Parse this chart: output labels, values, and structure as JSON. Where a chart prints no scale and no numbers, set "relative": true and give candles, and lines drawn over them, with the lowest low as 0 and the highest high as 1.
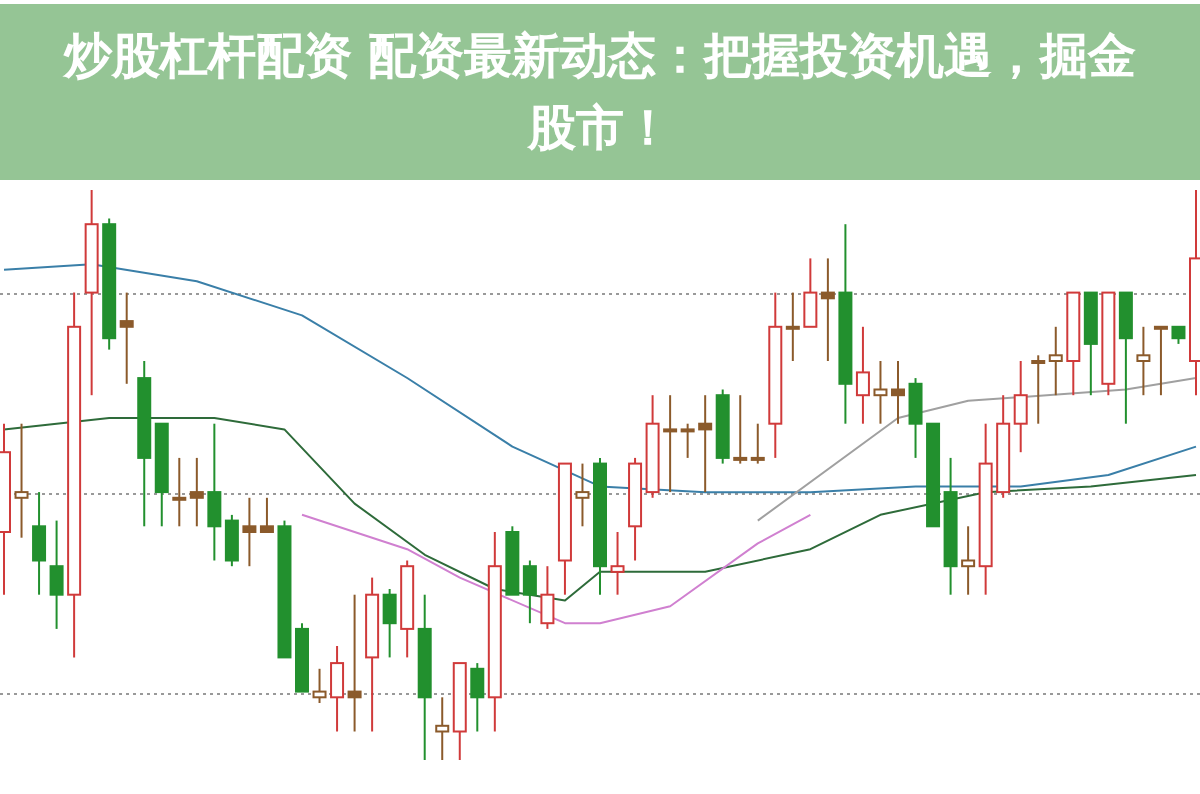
{
  "chart_data": {
    "type": "candlestick",
    "title": "炒股杠杆配资 配资最新动态：把握投资机遇，掘金股市！",
    "relative": true,
    "grid": true,
    "categories": [
      null,
      null,
      null,
      null,
      null,
      null,
      null,
      null,
      null,
      null,
      null,
      null,
      null,
      null,
      null,
      null,
      null,
      null,
      null,
      null,
      null,
      null,
      null,
      null,
      null,
      null,
      null,
      null,
      null,
      null,
      null,
      null,
      null,
      null,
      null,
      null,
      null,
      null,
      null,
      null,
      null,
      null,
      null,
      null,
      null,
      null,
      null,
      null,
      null,
      null,
      null,
      null,
      null,
      null,
      null,
      null,
      null,
      null,
      null,
      null,
      null,
      null,
      null,
      null,
      null,
      null,
      null,
      null,
      null
    ],
    "ohlc": [
      [
        0.4,
        0.59,
        0.29,
        0.54
      ],
      [
        0.46,
        0.59,
        0.39,
        0.47
      ],
      [
        0.41,
        0.47,
        0.29,
        0.35
      ],
      [
        0.34,
        0.42,
        0.23,
        0.29
      ],
      [
        0.29,
        0.82,
        0.18,
        0.76
      ],
      [
        0.82,
        1.0,
        0.64,
        0.94
      ],
      [
        0.94,
        0.95,
        0.72,
        0.74
      ],
      [
        0.77,
        0.82,
        0.66,
        0.76
      ],
      [
        0.67,
        0.7,
        0.41,
        0.53
      ],
      [
        0.59,
        0.59,
        0.41,
        0.47
      ],
      [
        0.46,
        0.53,
        0.41,
        0.46
      ],
      [
        0.47,
        0.53,
        0.41,
        0.46
      ],
      [
        0.47,
        0.59,
        0.35,
        0.41
      ],
      [
        0.42,
        0.43,
        0.34,
        0.35
      ],
      [
        0.41,
        0.46,
        0.34,
        0.4
      ],
      [
        0.41,
        0.46,
        0.4,
        0.4
      ],
      [
        0.41,
        0.42,
        0.18,
        0.18
      ],
      [
        0.23,
        0.24,
        0.12,
        0.12
      ],
      [
        0.11,
        0.16,
        0.1,
        0.12
      ],
      [
        0.11,
        0.2,
        0.05,
        0.17
      ],
      [
        0.12,
        0.29,
        0.05,
        0.11
      ],
      [
        0.18,
        0.32,
        0.05,
        0.29
      ],
      [
        0.29,
        0.3,
        0.18,
        0.24
      ],
      [
        0.23,
        0.35,
        0.18,
        0.34
      ],
      [
        0.23,
        0.29,
        0.0,
        0.11
      ],
      [
        0.05,
        0.11,
        0.0,
        0.06
      ],
      [
        0.05,
        0.17,
        0.0,
        0.17
      ],
      [
        0.16,
        0.17,
        0.05,
        0.11
      ],
      [
        0.11,
        0.4,
        0.05,
        0.34
      ],
      [
        0.4,
        0.41,
        0.29,
        0.29
      ],
      [
        0.34,
        0.35,
        0.24,
        0.29
      ],
      [
        0.24,
        0.34,
        0.23,
        0.29
      ],
      [
        0.35,
        0.52,
        0.29,
        0.52
      ],
      [
        0.46,
        0.52,
        0.41,
        0.47
      ],
      [
        0.52,
        0.53,
        0.29,
        0.34
      ],
      [
        0.33,
        0.4,
        0.29,
        0.34
      ],
      [
        0.41,
        0.53,
        0.35,
        0.52
      ],
      [
        0.47,
        0.64,
        0.46,
        0.59
      ],
      [
        0.58,
        0.64,
        0.47,
        0.58
      ],
      [
        0.58,
        0.59,
        0.53,
        0.58
      ],
      [
        0.59,
        0.64,
        0.47,
        0.58
      ],
      [
        0.64,
        0.65,
        0.52,
        0.53
      ],
      [
        0.53,
        0.64,
        0.52,
        0.53
      ],
      [
        0.53,
        0.59,
        0.52,
        0.53
      ],
      [
        0.59,
        0.82,
        0.53,
        0.76
      ],
      [
        0.76,
        0.82,
        0.7,
        0.76
      ],
      [
        0.76,
        0.88,
        0.76,
        0.82
      ],
      [
        0.82,
        0.88,
        0.7,
        0.81
      ],
      [
        0.82,
        0.94,
        0.59,
        0.66
      ],
      [
        0.64,
        0.76,
        0.59,
        0.68
      ],
      [
        0.64,
        0.7,
        0.59,
        0.65
      ],
      [
        0.65,
        0.7,
        0.59,
        0.64
      ],
      [
        0.66,
        0.67,
        0.53,
        0.59
      ],
      [
        0.59,
        0.59,
        0.41,
        0.41
      ],
      [
        0.47,
        0.53,
        0.29,
        0.34
      ],
      [
        0.34,
        0.41,
        0.29,
        0.35
      ],
      [
        0.34,
        0.59,
        0.29,
        0.52
      ],
      [
        0.47,
        0.64,
        0.46,
        0.59
      ],
      [
        0.59,
        0.7,
        0.54,
        0.64
      ],
      [
        0.7,
        0.71,
        0.59,
        0.7
      ],
      [
        0.7,
        0.76,
        0.64,
        0.71
      ],
      [
        0.7,
        0.82,
        0.64,
        0.82
      ],
      [
        0.82,
        0.82,
        0.64,
        0.73
      ],
      [
        0.66,
        0.82,
        0.64,
        0.82
      ],
      [
        0.82,
        0.82,
        0.59,
        0.74
      ],
      [
        0.7,
        0.76,
        0.64,
        0.71
      ],
      [
        0.76,
        0.76,
        0.64,
        0.76
      ],
      [
        0.76,
        0.76,
        0.73,
        0.74
      ],
      [
        0.7,
        1.0,
        0.64,
        0.88
      ]
    ],
    "colors": [
      "#d03a3a",
      "#8b5a2b",
      "#22902e",
      "#22902e",
      "#d03a3a",
      "#d03a3a",
      "#22902e",
      "#8b5a2b",
      "#22902e",
      "#22902e",
      "#8b5a2b",
      "#8b5a2b",
      "#22902e",
      "#22902e",
      "#8b5a2b",
      "#8b5a2b",
      "#22902e",
      "#22902e",
      "#8b5a2b",
      "#d03a3a",
      "#8b5a2b",
      "#d03a3a",
      "#22902e",
      "#d03a3a",
      "#22902e",
      "#8b5a2b",
      "#d03a3a",
      "#22902e",
      "#d03a3a",
      "#22902e",
      "#22902e",
      "#d03a3a",
      "#d03a3a",
      "#8b5a2b",
      "#22902e",
      "#d03a3a",
      "#d03a3a",
      "#d03a3a",
      "#8b5a2b",
      "#8b5a2b",
      "#8b5a2b",
      "#22902e",
      "#8b5a2b",
      "#8b5a2b",
      "#d03a3a",
      "#8b5a2b",
      "#d03a3a",
      "#8b5a2b",
      "#22902e",
      "#d03a3a",
      "#8b5a2b",
      "#8b5a2b",
      "#22902e",
      "#22902e",
      "#22902e",
      "#8b5a2b",
      "#d03a3a",
      "#d03a3a",
      "#d03a3a",
      "#8b5a2b",
      "#8b5a2b",
      "#d03a3a",
      "#22902e",
      "#d03a3a",
      "#22902e",
      "#8b5a2b",
      "#8b5a2b",
      "#22902e",
      "#d03a3a"
    ],
    "series": [
      {
        "type": "line",
        "color": "#3a7fa8",
        "values": [
          0.86,
          null,
          null,
          null,
          null,
          0.87,
          null,
          null,
          null,
          null,
          null,
          0.84,
          null,
          null,
          null,
          null,
          null,
          0.78,
          null,
          null,
          null,
          null,
          null,
          0.67,
          null,
          null,
          null,
          null,
          null,
          0.55,
          null,
          null,
          null,
          null,
          0.48,
          null,
          null,
          null,
          null,
          null,
          0.47,
          null,
          null,
          null,
          null,
          null,
          0.47,
          null,
          null,
          null,
          null,
          null,
          0.48,
          null,
          null,
          null,
          null,
          null,
          0.48,
          null,
          null,
          null,
          null,
          0.5,
          null,
          null,
          null,
          null,
          0.55
        ]
      },
      {
        "type": "line",
        "color": "#2e6b3a",
        "values": [
          0.58,
          null,
          null,
          null,
          null,
          null,
          0.6,
          null,
          null,
          null,
          null,
          null,
          0.6,
          null,
          null,
          null,
          0.58,
          null,
          null,
          null,
          0.45,
          null,
          null,
          null,
          0.36,
          null,
          null,
          null,
          0.3,
          null,
          null,
          null,
          0.28,
          null,
          0.33,
          null,
          null,
          null,
          null,
          null,
          0.33,
          null,
          null,
          null,
          null,
          null,
          0.37,
          null,
          null,
          null,
          0.43,
          null,
          null,
          null,
          null,
          null,
          0.47,
          null,
          null,
          null,
          null,
          null,
          0.48,
          null,
          null,
          null,
          null,
          null,
          0.5
        ]
      },
      {
        "type": "line",
        "color": "#d080d0",
        "values": [
          null,
          null,
          null,
          null,
          null,
          null,
          null,
          null,
          null,
          null,
          null,
          null,
          null,
          null,
          null,
          null,
          null,
          0.43,
          null,
          null,
          null,
          null,
          null,
          0.37,
          null,
          null,
          0.32,
          null,
          null,
          null,
          null,
          null,
          0.24,
          null,
          0.24,
          null,
          null,
          null,
          0.27,
          null,
          null,
          null,
          null,
          0.38,
          null,
          null,
          0.43,
          null,
          null,
          null,
          null,
          null,
          null,
          null,
          null,
          null,
          null,
          null,
          null,
          null,
          null,
          null,
          null,
          null,
          null,
          null,
          null,
          null,
          null
        ]
      },
      {
        "type": "line",
        "color": "#a0a0a0",
        "values": [
          null,
          null,
          null,
          null,
          null,
          null,
          null,
          null,
          null,
          null,
          null,
          null,
          null,
          null,
          null,
          null,
          null,
          null,
          null,
          null,
          null,
          null,
          null,
          null,
          null,
          null,
          null,
          null,
          null,
          null,
          null,
          null,
          null,
          null,
          null,
          null,
          null,
          null,
          null,
          null,
          null,
          null,
          null,
          0.42,
          null,
          null,
          null,
          null,
          null,
          null,
          null,
          0.6,
          null,
          null,
          null,
          0.63,
          null,
          null,
          null,
          null,
          null,
          null,
          null,
          null,
          0.65,
          null,
          null,
          null,
          0.67
        ]
      }
    ]
  }
}
